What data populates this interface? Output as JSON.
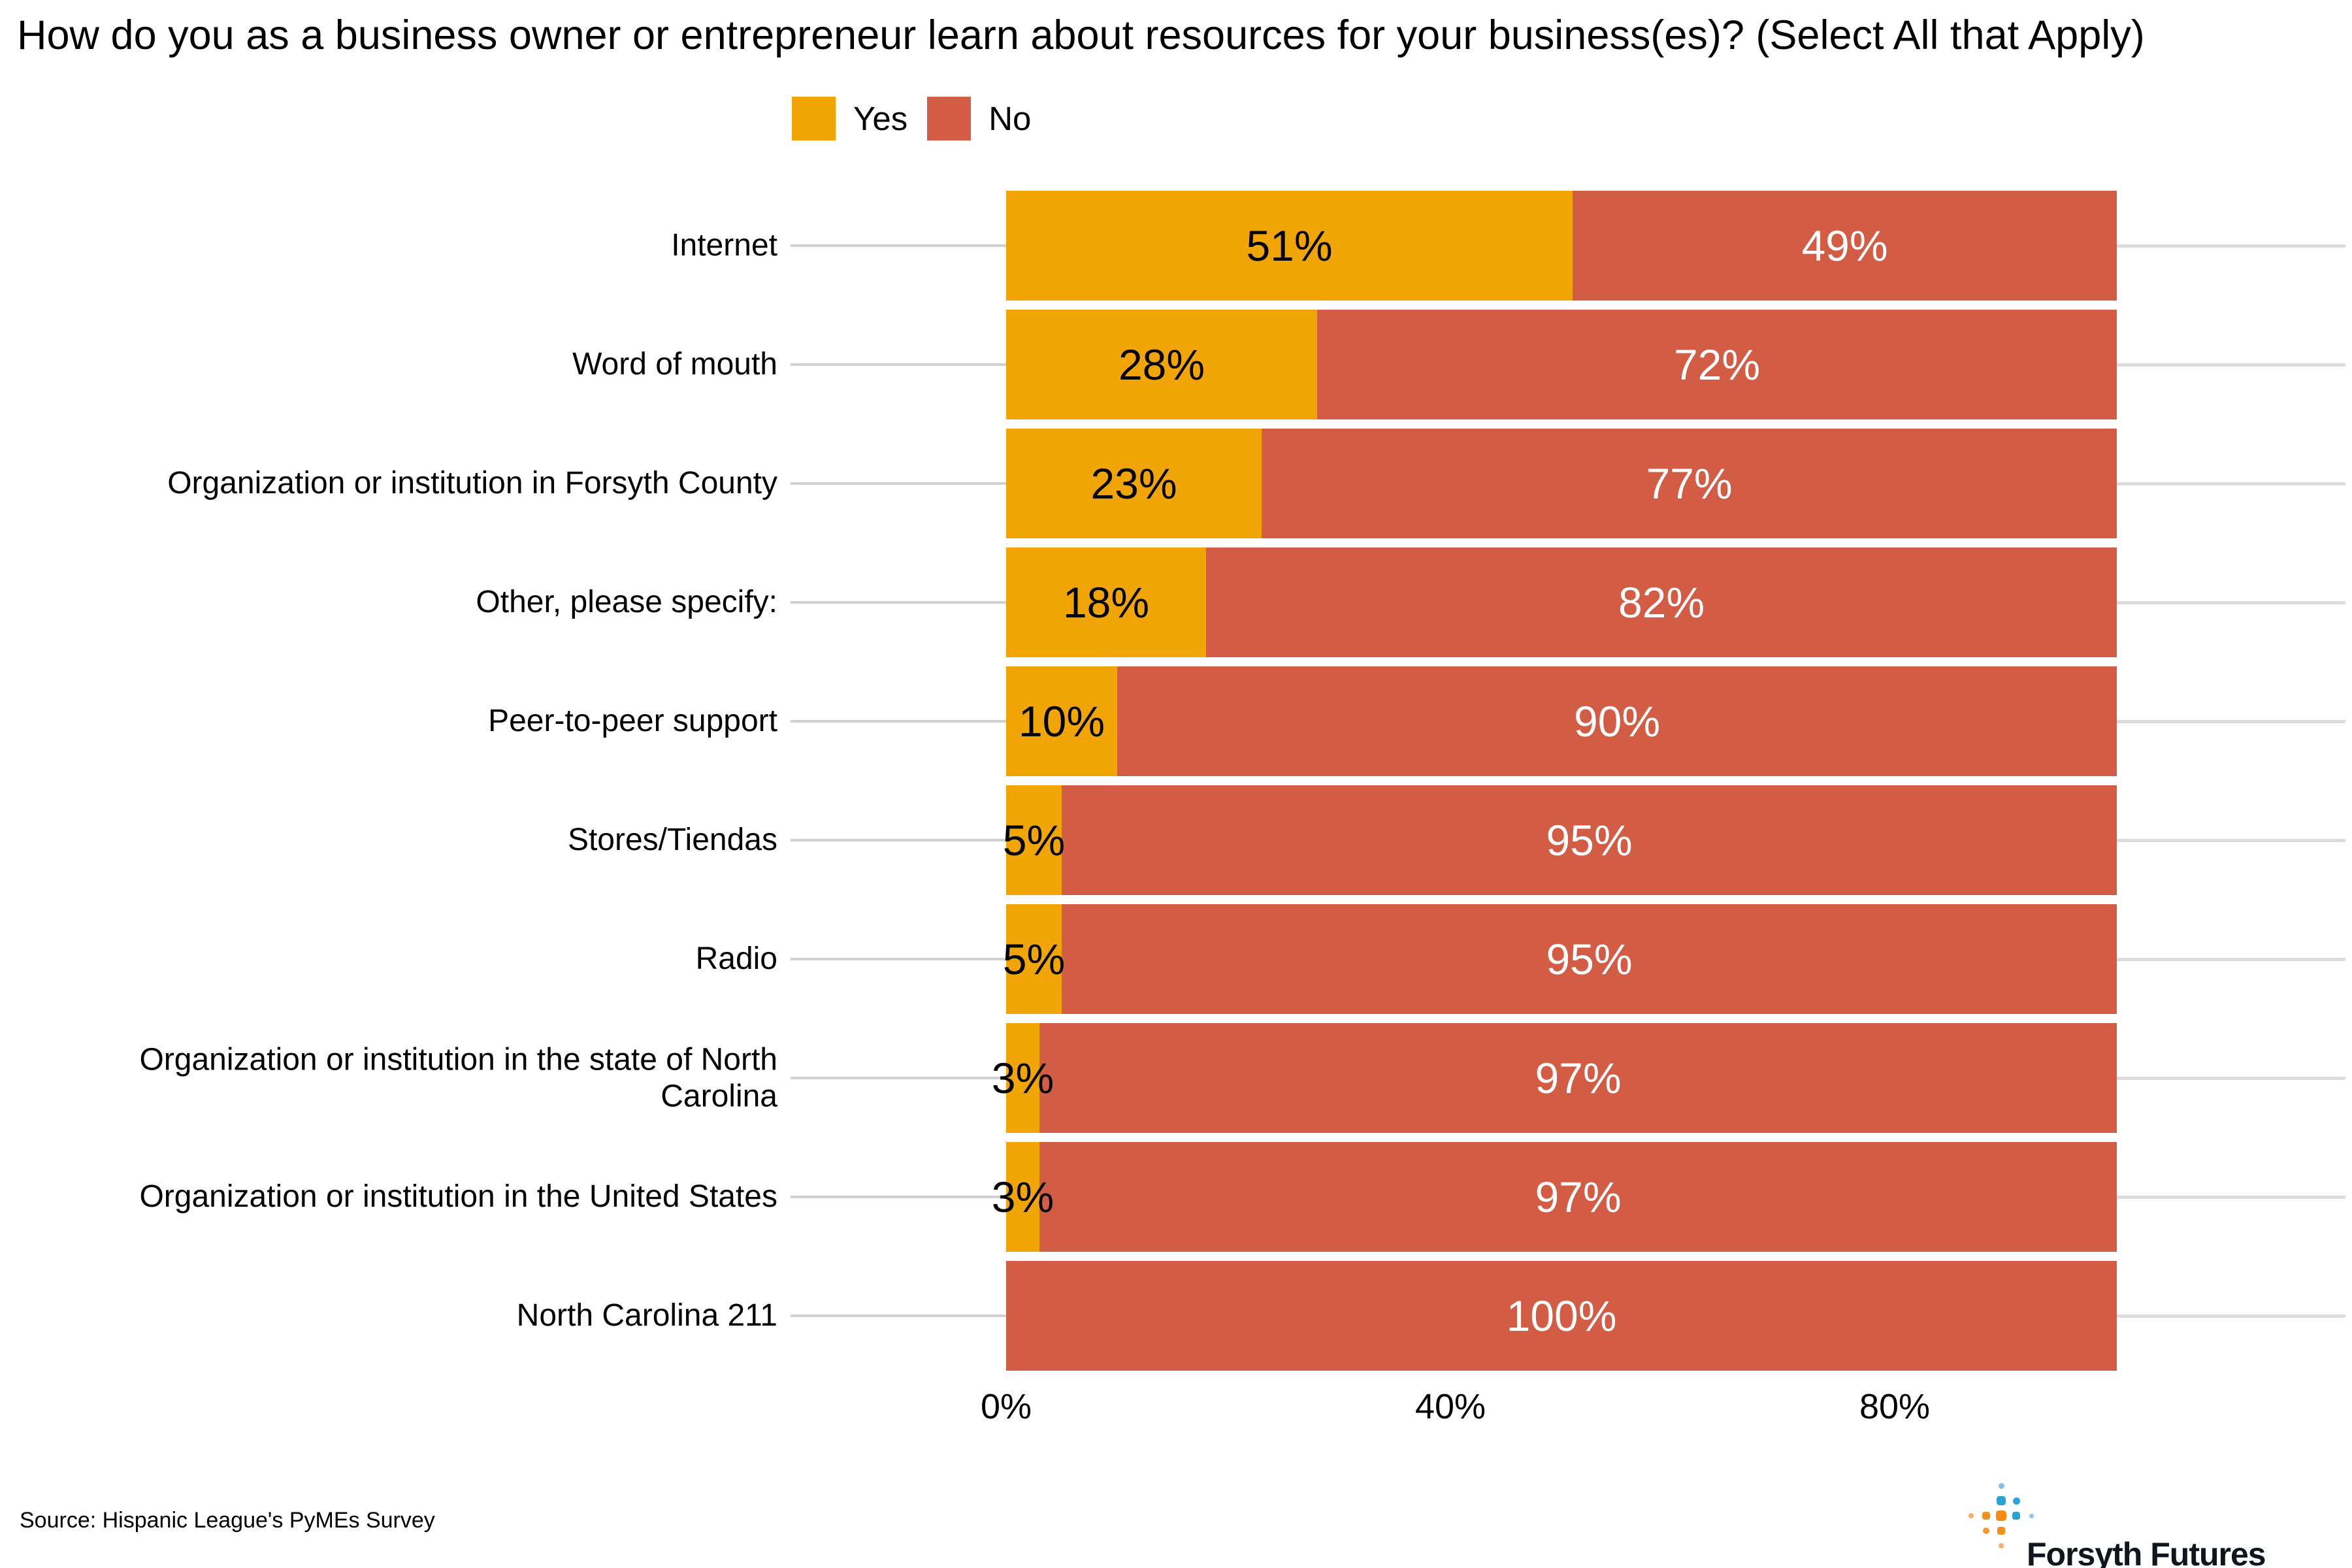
{
  "title": "How do you as a business owner or entrepreneur learn about resources for your business(es)? (Select All that Apply)",
  "legend": {
    "items": [
      {
        "label": "Yes",
        "color": "#F0A505"
      },
      {
        "label": "No",
        "color": "#D35C45"
      }
    ]
  },
  "chart_data": {
    "type": "bar",
    "orientation": "horizontal",
    "stacked": true,
    "unit": "%",
    "title": "How do you as a business owner or entrepreneur learn about resources for your business(es)? (Select All that Apply)",
    "categories": [
      "Internet",
      "Word of mouth",
      "Organization or institution in Forsyth County",
      "Other, please specify:",
      "Peer-to-peer support",
      "Stores/Tiendas",
      "Radio",
      "Organization or institution in the state of North Carolina",
      "Organization or institution in the United States",
      "North Carolina 211"
    ],
    "series": [
      {
        "name": "Yes",
        "color": "#F0A505",
        "values": [
          51,
          28,
          23,
          18,
          10,
          5,
          5,
          3,
          3,
          0
        ],
        "labels": [
          "51%",
          "28%",
          "23%",
          "18%",
          "10%",
          "5%",
          "5%",
          "3%",
          "3%",
          ""
        ]
      },
      {
        "name": "No",
        "color": "#D35C45",
        "values": [
          49,
          72,
          77,
          82,
          90,
          95,
          95,
          97,
          97,
          100
        ],
        "labels": [
          "49%",
          "72%",
          "77%",
          "82%",
          "90%",
          "95%",
          "95%",
          "97%",
          "97%",
          "100%"
        ]
      }
    ],
    "xlabel": "",
    "ylabel": "",
    "xlim": [
      0,
      100
    ],
    "x_ticks": [
      {
        "label": "0%",
        "value": 0
      },
      {
        "label": "40%",
        "value": 40
      },
      {
        "label": "80%",
        "value": 80
      }
    ],
    "grid": false,
    "legend_position": "top",
    "value_label_colors": {
      "Yes": "#000000",
      "No": "#ffffff"
    }
  },
  "source": "Source: Hispanic League's PyMEs Survey",
  "logo": {
    "text": "Forsyth Futures",
    "colors": {
      "blue": "#29A3D3",
      "light_blue": "#85C0E4",
      "orange": "#F28E1C",
      "light_orange": "#F8AE70",
      "text": "#10151e"
    },
    "dots": [
      {
        "col": 2,
        "row": 0,
        "d": 9,
        "color": "#85C0E4"
      },
      {
        "col": 2,
        "row": 1,
        "d": 14,
        "color": "#29A3D3"
      },
      {
        "col": 3,
        "row": 1,
        "d": 11,
        "color": "#2AA5D5"
      },
      {
        "col": 0,
        "row": 2,
        "d": 8,
        "color": "#F8AE70"
      },
      {
        "col": 1,
        "row": 2,
        "d": 12,
        "color": "#F3931F"
      },
      {
        "col": 2,
        "row": 2,
        "d": 16,
        "color": "#F28C15"
      },
      {
        "col": 3,
        "row": 2,
        "d": 12,
        "color": "#29A3D3"
      },
      {
        "col": 4,
        "row": 2,
        "d": 7,
        "color": "#8EC6E8"
      },
      {
        "col": 1,
        "row": 3,
        "d": 10,
        "color": "#F49A2E"
      },
      {
        "col": 2,
        "row": 3,
        "d": 12,
        "color": "#F28F1D"
      },
      {
        "col": 2,
        "row": 4,
        "d": 8,
        "color": "#F7B074"
      }
    ]
  }
}
